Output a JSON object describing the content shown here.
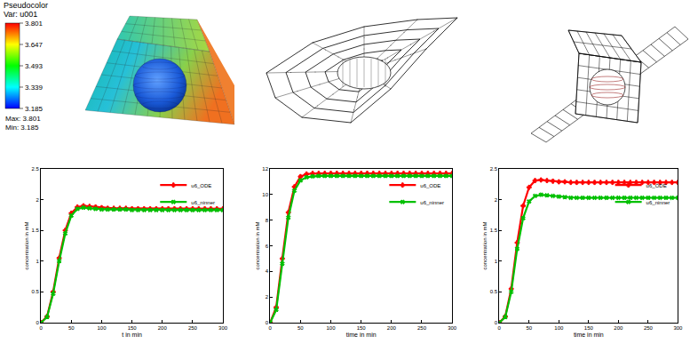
{
  "colorbar": {
    "title": "Pseudocolor",
    "variable": "Var: u001",
    "range": [
      3.185,
      3.801
    ],
    "ticks": [
      3.801,
      3.647,
      3.493,
      3.339,
      3.185
    ],
    "colors": [
      "#ff0000",
      "#ffff00",
      "#00ff00",
      "#00ffff",
      "#0000ff"
    ],
    "max_label": "Max: 3.801",
    "min_label": "Min: 3.185"
  },
  "chart_data": [
    {
      "type": "line",
      "x_label": "t in min",
      "y_label": "concentration in mM",
      "xlim": [
        0,
        300
      ],
      "xticks": [
        0,
        50,
        100,
        150,
        200,
        250,
        300
      ],
      "ylim": [
        0,
        2.5
      ],
      "yticks": [
        0,
        0.5,
        1,
        1.5,
        2,
        2.5
      ],
      "grid": false,
      "legend": "top right",
      "x": [
        0,
        10,
        20,
        30,
        40,
        50,
        60,
        70,
        80,
        90,
        100,
        110,
        120,
        130,
        140,
        150,
        160,
        170,
        180,
        190,
        200,
        210,
        220,
        230,
        240,
        250,
        260,
        270,
        280,
        290,
        300
      ],
      "series": [
        {
          "name": "u6_ODE",
          "color": "#ff0000",
          "marker": "cross",
          "values": [
            0,
            0.1,
            0.5,
            1.05,
            1.5,
            1.78,
            1.88,
            1.9,
            1.89,
            1.88,
            1.87,
            1.86,
            1.86,
            1.86,
            1.86,
            1.85,
            1.85,
            1.85,
            1.85,
            1.85,
            1.85,
            1.85,
            1.85,
            1.85,
            1.85,
            1.85,
            1.85,
            1.85,
            1.85,
            1.85,
            1.85
          ]
        },
        {
          "name": "u6_ninner",
          "color": "#00c000",
          "marker": "x",
          "values": [
            0,
            0.09,
            0.47,
            1.0,
            1.45,
            1.74,
            1.85,
            1.87,
            1.86,
            1.85,
            1.84,
            1.84,
            1.84,
            1.84,
            1.84,
            1.83,
            1.83,
            1.83,
            1.83,
            1.83,
            1.83,
            1.83,
            1.83,
            1.83,
            1.83,
            1.83,
            1.83,
            1.83,
            1.83,
            1.83,
            1.83
          ]
        }
      ]
    },
    {
      "type": "line",
      "x_label": "time in min",
      "y_label": "concentration in mM",
      "xlim": [
        0,
        300
      ],
      "xticks": [
        0,
        50,
        100,
        150,
        200,
        250,
        300
      ],
      "ylim": [
        0,
        12
      ],
      "yticks": [
        0,
        2,
        4,
        6,
        8,
        10,
        12
      ],
      "grid": false,
      "legend": "top right",
      "x": [
        0,
        10,
        20,
        30,
        40,
        50,
        60,
        70,
        80,
        90,
        100,
        110,
        120,
        130,
        140,
        150,
        160,
        170,
        180,
        190,
        200,
        210,
        220,
        230,
        240,
        250,
        260,
        270,
        280,
        290,
        300
      ],
      "series": [
        {
          "name": "u6_ODE",
          "color": "#ff0000",
          "marker": "cross",
          "values": [
            0,
            1.2,
            5.0,
            8.6,
            10.6,
            11.4,
            11.6,
            11.65,
            11.65,
            11.65,
            11.65,
            11.65,
            11.65,
            11.65,
            11.65,
            11.65,
            11.65,
            11.65,
            11.65,
            11.65,
            11.65,
            11.65,
            11.65,
            11.65,
            11.65,
            11.65,
            11.65,
            11.65,
            11.65,
            11.65,
            11.65
          ]
        },
        {
          "name": "u6_ninner",
          "color": "#00c000",
          "marker": "x",
          "values": [
            0,
            1.0,
            4.6,
            8.2,
            10.3,
            11.1,
            11.35,
            11.42,
            11.45,
            11.45,
            11.45,
            11.45,
            11.45,
            11.45,
            11.45,
            11.45,
            11.45,
            11.45,
            11.45,
            11.45,
            11.45,
            11.45,
            11.45,
            11.45,
            11.45,
            11.45,
            11.45,
            11.45,
            11.45,
            11.45,
            11.45
          ]
        }
      ]
    },
    {
      "type": "line",
      "x_label": "time in min",
      "y_label": "concentration in mM",
      "xlim": [
        0,
        300
      ],
      "xticks": [
        0,
        50,
        100,
        150,
        200,
        250,
        300
      ],
      "ylim": [
        0,
        2.5
      ],
      "yticks": [
        0,
        0.5,
        1,
        1.5,
        2,
        2.5
      ],
      "grid": false,
      "legend": "top right",
      "x": [
        0,
        10,
        20,
        30,
        40,
        50,
        60,
        70,
        80,
        90,
        100,
        110,
        120,
        130,
        140,
        150,
        160,
        170,
        180,
        190,
        200,
        210,
        220,
        230,
        240,
        250,
        260,
        270,
        280,
        290,
        300
      ],
      "series": [
        {
          "name": "u6_ODE",
          "color": "#ff0000",
          "marker": "cross",
          "values": [
            0,
            0.1,
            0.55,
            1.3,
            1.9,
            2.2,
            2.31,
            2.32,
            2.31,
            2.3,
            2.29,
            2.29,
            2.28,
            2.28,
            2.28,
            2.28,
            2.28,
            2.28,
            2.28,
            2.28,
            2.28,
            2.28,
            2.28,
            2.28,
            2.28,
            2.28,
            2.28,
            2.28,
            2.28,
            2.28,
            2.28
          ]
        },
        {
          "name": "u6_ninner",
          "color": "#00c000",
          "marker": "x",
          "values": [
            0,
            0.09,
            0.5,
            1.2,
            1.7,
            1.97,
            2.06,
            2.08,
            2.07,
            2.06,
            2.05,
            2.04,
            2.03,
            2.03,
            2.03,
            2.03,
            2.03,
            2.03,
            2.03,
            2.03,
            2.03,
            2.03,
            2.03,
            2.03,
            2.03,
            2.03,
            2.03,
            2.03,
            2.03,
            2.03,
            2.03
          ]
        }
      ]
    }
  ]
}
